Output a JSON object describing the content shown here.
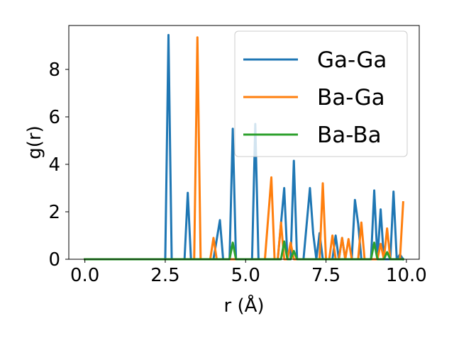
{
  "chart_data": {
    "type": "line",
    "title": "",
    "xlabel": "r (Å)",
    "ylabel": "g(r)",
    "xlim": [
      -0.5,
      10.4
    ],
    "ylim": [
      0,
      9.85
    ],
    "xticks": [
      0.0,
      2.5,
      5.0,
      7.5,
      10.0
    ],
    "xtick_labels": [
      "0.0",
      "2.5",
      "5.0",
      "7.5",
      "10.0"
    ],
    "yticks": [
      0,
      2,
      4,
      6,
      8
    ],
    "ytick_labels": [
      "0",
      "2",
      "4",
      "6",
      "8"
    ],
    "grid": false,
    "legend_position": "top-right",
    "series": [
      {
        "name": "Ga-Ga",
        "color": "#1f77b4",
        "points": [
          [
            0,
            0
          ],
          [
            2.5,
            0
          ],
          [
            2.6,
            9.45
          ],
          [
            2.7,
            0
          ],
          [
            3.1,
            0
          ],
          [
            3.2,
            2.8
          ],
          [
            3.3,
            0
          ],
          [
            4.0,
            0
          ],
          [
            4.2,
            1.65
          ],
          [
            4.3,
            0
          ],
          [
            4.5,
            0
          ],
          [
            4.6,
            5.5
          ],
          [
            4.7,
            0
          ],
          [
            5.2,
            0
          ],
          [
            5.3,
            5.7
          ],
          [
            5.4,
            0
          ],
          [
            6.0,
            0
          ],
          [
            6.2,
            3.0
          ],
          [
            6.3,
            0
          ],
          [
            6.4,
            0
          ],
          [
            6.5,
            4.15
          ],
          [
            6.6,
            0
          ],
          [
            6.8,
            0
          ],
          [
            7.0,
            3.0
          ],
          [
            7.1,
            1.1
          ],
          [
            7.2,
            0
          ],
          [
            7.3,
            1.1
          ],
          [
            7.4,
            0
          ],
          [
            7.7,
            0
          ],
          [
            7.8,
            1.0
          ],
          [
            7.9,
            0
          ],
          [
            8.0,
            0.9
          ],
          [
            8.1,
            0
          ],
          [
            8.3,
            0
          ],
          [
            8.4,
            2.5
          ],
          [
            8.5,
            1.5
          ],
          [
            8.6,
            0
          ],
          [
            8.7,
            0
          ],
          [
            8.8,
            0
          ],
          [
            8.9,
            0
          ],
          [
            9.0,
            2.9
          ],
          [
            9.1,
            0
          ],
          [
            9.2,
            2.1
          ],
          [
            9.3,
            0
          ],
          [
            9.4,
            0
          ],
          [
            9.5,
            0
          ],
          [
            9.6,
            2.85
          ],
          [
            9.7,
            0
          ],
          [
            9.8,
            0.2
          ],
          [
            9.9,
            0
          ]
        ]
      },
      {
        "name": "Ba-Ga",
        "color": "#ff7f0e",
        "points": [
          [
            0,
            0
          ],
          [
            3.4,
            0
          ],
          [
            3.5,
            9.35
          ],
          [
            3.6,
            0
          ],
          [
            3.9,
            0
          ],
          [
            4.0,
            0.9
          ],
          [
            4.1,
            0
          ],
          [
            5.6,
            0
          ],
          [
            5.8,
            3.45
          ],
          [
            5.9,
            0
          ],
          [
            6.0,
            0
          ],
          [
            6.1,
            1.55
          ],
          [
            6.2,
            0
          ],
          [
            6.3,
            0
          ],
          [
            6.4,
            0.7
          ],
          [
            6.5,
            0
          ],
          [
            7.3,
            0
          ],
          [
            7.4,
            3.2
          ],
          [
            7.5,
            0
          ],
          [
            7.6,
            0
          ],
          [
            7.7,
            1.0
          ],
          [
            7.8,
            0
          ],
          [
            7.9,
            0
          ],
          [
            8.0,
            0.9
          ],
          [
            8.1,
            0
          ],
          [
            8.2,
            0.85
          ],
          [
            8.3,
            0
          ],
          [
            8.5,
            0
          ],
          [
            8.6,
            1.55
          ],
          [
            8.7,
            0
          ],
          [
            9.1,
            0
          ],
          [
            9.2,
            0.65
          ],
          [
            9.3,
            0
          ],
          [
            9.4,
            1.3
          ],
          [
            9.5,
            0
          ],
          [
            9.8,
            0
          ],
          [
            9.9,
            2.4
          ]
        ]
      },
      {
        "name": "Ba-Ba",
        "color": "#2ca02c",
        "points": [
          [
            0,
            0
          ],
          [
            4.5,
            0
          ],
          [
            4.6,
            0.7
          ],
          [
            4.7,
            0
          ],
          [
            6.1,
            0
          ],
          [
            6.2,
            0.75
          ],
          [
            6.3,
            0
          ],
          [
            6.4,
            0
          ],
          [
            6.5,
            0.35
          ],
          [
            6.6,
            0
          ],
          [
            8.9,
            0
          ],
          [
            9.0,
            0.7
          ],
          [
            9.1,
            0
          ],
          [
            9.3,
            0
          ],
          [
            9.4,
            0.3
          ],
          [
            9.5,
            0
          ],
          [
            9.9,
            0
          ]
        ]
      }
    ]
  }
}
